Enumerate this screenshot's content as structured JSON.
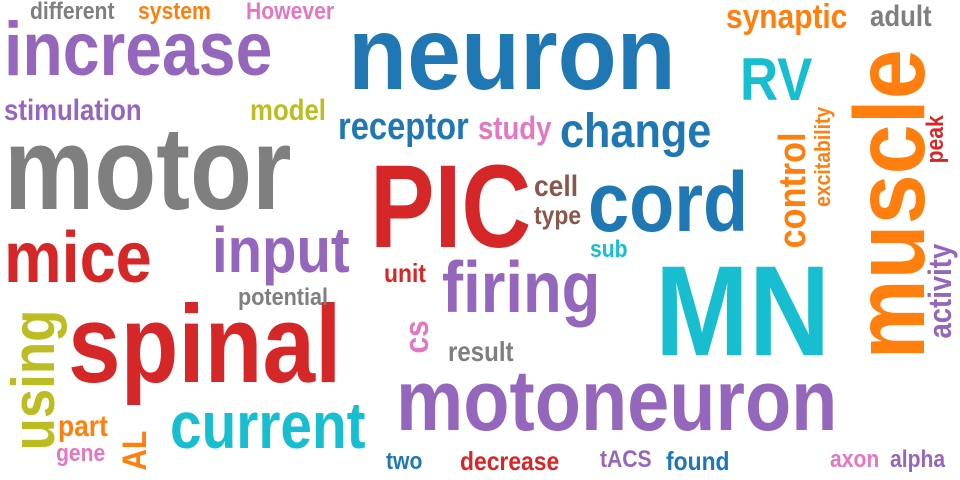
{
  "palette": {
    "purple": "#9467bd",
    "blue": "#1f77b4",
    "gray": "#7f7f7f",
    "red": "#d62728",
    "cyan": "#17becf",
    "orange": "#ff7f0e",
    "olive": "#bcbd22",
    "pink": "#e377c2",
    "brown": "#8c564b"
  },
  "words": [
    {
      "id": "neuron",
      "text": "neuron",
      "color": "blue"
    },
    {
      "id": "increase",
      "text": "increase",
      "color": "purple"
    },
    {
      "id": "motor",
      "text": "motor",
      "color": "gray"
    },
    {
      "id": "pic",
      "text": "PIC",
      "color": "red"
    },
    {
      "id": "muscle",
      "text": "muscle",
      "color": "orange"
    },
    {
      "id": "mn",
      "text": "MN",
      "color": "cyan"
    },
    {
      "id": "spinal",
      "text": "spinal",
      "color": "red"
    },
    {
      "id": "motoneuron",
      "text": "motoneuron",
      "color": "purple"
    },
    {
      "id": "cord",
      "text": "cord",
      "color": "blue"
    },
    {
      "id": "mice",
      "text": "mice",
      "color": "red"
    },
    {
      "id": "firing",
      "text": "firing",
      "color": "purple"
    },
    {
      "id": "input",
      "text": "input",
      "color": "purple"
    },
    {
      "id": "current",
      "text": "current",
      "color": "cyan"
    },
    {
      "id": "change",
      "text": "change",
      "color": "blue"
    },
    {
      "id": "rv",
      "text": "RV",
      "color": "cyan"
    },
    {
      "id": "using",
      "text": "using",
      "color": "olive"
    },
    {
      "id": "control",
      "text": "control",
      "color": "orange"
    },
    {
      "id": "receptor",
      "text": "receptor",
      "color": "blue"
    },
    {
      "id": "synaptic",
      "text": "synaptic",
      "color": "orange"
    },
    {
      "id": "stimulation",
      "text": "stimulation",
      "color": "purple"
    },
    {
      "id": "study",
      "text": "study",
      "color": "pink"
    },
    {
      "id": "model",
      "text": "model",
      "color": "olive"
    },
    {
      "id": "different",
      "text": "different",
      "color": "gray"
    },
    {
      "id": "system",
      "text": "system",
      "color": "orange"
    },
    {
      "id": "however",
      "text": "However",
      "color": "pink"
    },
    {
      "id": "adult",
      "text": "adult",
      "color": "gray"
    },
    {
      "id": "cell",
      "text": "cell",
      "color": "brown"
    },
    {
      "id": "type",
      "text": "type",
      "color": "brown"
    },
    {
      "id": "sub",
      "text": "sub",
      "color": "cyan"
    },
    {
      "id": "unit",
      "text": "unit",
      "color": "red"
    },
    {
      "id": "potential",
      "text": "potential",
      "color": "gray"
    },
    {
      "id": "cs",
      "text": "cs",
      "color": "pink"
    },
    {
      "id": "result",
      "text": "result",
      "color": "gray"
    },
    {
      "id": "excitability",
      "text": "excitability",
      "color": "orange"
    },
    {
      "id": "peak",
      "text": "peak",
      "color": "red"
    },
    {
      "id": "activity",
      "text": "activity",
      "color": "purple"
    },
    {
      "id": "part",
      "text": "part",
      "color": "orange"
    },
    {
      "id": "gene",
      "text": "gene",
      "color": "pink"
    },
    {
      "id": "al",
      "text": "AL",
      "color": "orange"
    },
    {
      "id": "two",
      "text": "two",
      "color": "blue"
    },
    {
      "id": "decrease",
      "text": "decrease",
      "color": "red"
    },
    {
      "id": "tacs",
      "text": "tACS",
      "color": "purple"
    },
    {
      "id": "found",
      "text": "found",
      "color": "blue"
    },
    {
      "id": "axon",
      "text": "axon",
      "color": "pink"
    },
    {
      "id": "alpha",
      "text": "alpha",
      "color": "purple"
    }
  ]
}
